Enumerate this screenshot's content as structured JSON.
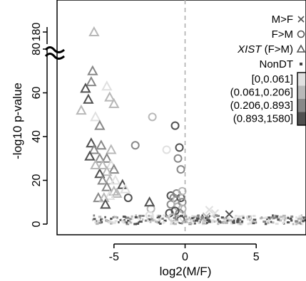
{
  "chart_data": {
    "type": "scatter",
    "xlabel": "log2(M/F)",
    "ylabel": "-log10 p-value",
    "xlim": [
      -9,
      8.5
    ],
    "ylim": [
      -3,
      93
    ],
    "y_axis_break": {
      "between": [
        95,
        170
      ],
      "upper_tick_value": 180
    },
    "x_ticks": [
      -5,
      0,
      5
    ],
    "x_tick_labels": [
      "-5",
      "0",
      "5"
    ],
    "y_ticks": [
      0,
      20,
      40,
      60,
      80,
      180
    ],
    "y_tick_labels": [
      "0",
      "20",
      "40",
      "60",
      "80",
      "180"
    ],
    "vline_at_x": 0,
    "grid": false,
    "legend": {
      "placement": "top-right",
      "entries": [
        {
          "label": "M>F",
          "marker": "x"
        },
        {
          "label": "F>M",
          "marker": "circle"
        },
        {
          "label_italic": "XIST",
          "label_rest": " (F>M)",
          "marker": "triangle"
        },
        {
          "label": "NonDT",
          "marker": "square"
        }
      ],
      "shade_bins": [
        {
          "label": "[0,0.061]",
          "color": "#e0e0e0"
        },
        {
          "label": "(0.061,0.206]",
          "color": "#b8b8b8"
        },
        {
          "label": "(0.206,0.893]",
          "color": "#888888"
        },
        {
          "label": "(0.893,1580]",
          "color": "#505050"
        }
      ]
    },
    "series": [
      {
        "group": "M>F",
        "marker": "x",
        "points": [
          [
            1.7,
            6.5,
            0
          ],
          [
            2.1,
            5,
            0
          ],
          [
            3.1,
            4.5,
            3
          ],
          [
            1.5,
            3.5,
            1
          ]
        ]
      },
      {
        "group": "F>M",
        "marker": "circle",
        "points": [
          [
            -2.3,
            49,
            1
          ],
          [
            -3.5,
            36,
            2
          ],
          [
            -1.3,
            34,
            0
          ],
          [
            -0.7,
            45,
            3
          ],
          [
            -0.4,
            35,
            3
          ],
          [
            -0.5,
            30,
            2
          ],
          [
            -0.3,
            25,
            2
          ],
          [
            -1.0,
            13,
            3
          ],
          [
            -1.0,
            9,
            2
          ],
          [
            -0.8,
            12,
            2
          ],
          [
            -0.6,
            11,
            1
          ],
          [
            -0.5,
            8,
            1
          ],
          [
            -0.3,
            12,
            3
          ],
          [
            -0.2,
            10,
            2
          ],
          [
            -0.2,
            7,
            1
          ],
          [
            -0.4,
            5,
            2
          ],
          [
            -0.7,
            6,
            3
          ],
          [
            -1.1,
            5,
            3
          ],
          [
            -0.9,
            3,
            1
          ],
          [
            -0.1,
            3,
            0
          ],
          [
            -0.3,
            2,
            3
          ],
          [
            -2.4,
            7,
            1
          ],
          [
            -2.5,
            4,
            0
          ],
          [
            -4.0,
            12,
            3
          ],
          [
            -0.6,
            14,
            2
          ],
          [
            -0.2,
            15,
            1
          ]
        ]
      },
      {
        "group": "XIST (F>M)",
        "marker": "triangle",
        "points": [
          [
            -6.4,
            180,
            1
          ],
          [
            -6.5,
            70,
            2
          ],
          [
            -6.6,
            65,
            2
          ],
          [
            -7.0,
            62,
            3
          ],
          [
            -7.3,
            52,
            1
          ],
          [
            -6.8,
            57,
            3
          ],
          [
            -5.5,
            63,
            0
          ],
          [
            -5.0,
            55,
            1
          ],
          [
            -5.3,
            58,
            1
          ],
          [
            -6.3,
            49,
            0
          ],
          [
            -6.0,
            45,
            2
          ],
          [
            -6.6,
            37,
            3
          ],
          [
            -6.4,
            34,
            2
          ],
          [
            -6.7,
            31,
            3
          ],
          [
            -5.9,
            36,
            2
          ],
          [
            -5.2,
            34,
            1
          ],
          [
            -6.0,
            30,
            2
          ],
          [
            -5.5,
            30,
            2
          ],
          [
            -5.8,
            27,
            1
          ],
          [
            -5.2,
            27,
            0
          ],
          [
            -5.0,
            25,
            2
          ],
          [
            -5.5,
            24,
            1
          ],
          [
            -6.0,
            23,
            3
          ],
          [
            -5.8,
            20,
            2
          ],
          [
            -5.3,
            20,
            1
          ],
          [
            -4.9,
            20,
            0
          ],
          [
            -4.4,
            18,
            3
          ],
          [
            -5.5,
            17,
            2
          ],
          [
            -5.0,
            15,
            1
          ],
          [
            -4.8,
            14,
            1
          ],
          [
            -5.3,
            13,
            0
          ],
          [
            -6.1,
            12,
            2
          ],
          [
            -5.7,
            12,
            1
          ],
          [
            -5.6,
            9,
            3
          ],
          [
            -4.2,
            16,
            0
          ],
          [
            -2.5,
            10,
            3
          ],
          [
            -6.3,
            27,
            1
          ]
        ]
      },
      {
        "group": "NonDT",
        "marker": "square",
        "count": 320,
        "x_range": [
          -6.5,
          8.5
        ],
        "y_range": [
          0,
          4
        ]
      }
    ]
  }
}
